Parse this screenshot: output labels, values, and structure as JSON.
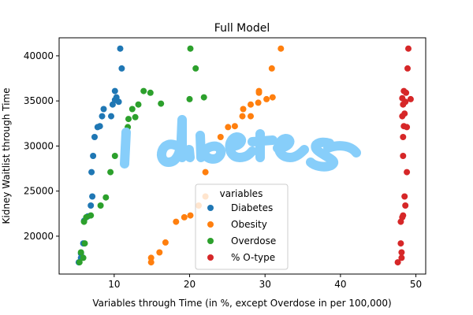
{
  "chart_data": {
    "type": "scatter",
    "title": "Full Model",
    "xlabel": "Variables through Time (in %, except Overdose in per 100,000)",
    "ylabel": "Kidney Waitlist through Time",
    "xlim": [
      2.7,
      51.3
    ],
    "ylim": [
      15800,
      42000
    ],
    "xticks": [
      10,
      20,
      30,
      40,
      50
    ],
    "yticks": [
      20000,
      25000,
      30000,
      35000,
      40000
    ],
    "grid": false,
    "legend": {
      "title": "variables",
      "placement": "lower-center",
      "entries": [
        "Diabetes",
        "Obesity",
        "Overdose",
        "% O-type"
      ]
    },
    "annotation": {
      "text": "Diabetes",
      "style": "handwritten",
      "color": "#87cefa"
    },
    "series": [
      {
        "name": "Diabetes",
        "color": "#1f77b4",
        "points": [
          [
            5.3,
            17100
          ],
          [
            5.6,
            17600
          ],
          [
            5.6,
            18100
          ],
          [
            5.9,
            19200
          ],
          [
            6.0,
            21700
          ],
          [
            6.5,
            22200
          ],
          [
            6.9,
            23400
          ],
          [
            7.1,
            24400
          ],
          [
            7.0,
            27100
          ],
          [
            7.2,
            28900
          ],
          [
            7.4,
            31000
          ],
          [
            7.8,
            32100
          ],
          [
            8.1,
            32200
          ],
          [
            8.4,
            33300
          ],
          [
            8.6,
            34100
          ],
          [
            9.6,
            33300
          ],
          [
            9.8,
            34600
          ],
          [
            10.1,
            35100
          ],
          [
            10.3,
            35400
          ],
          [
            10.1,
            36100
          ],
          [
            10.6,
            34900
          ],
          [
            11.0,
            38600
          ],
          [
            10.8,
            40800
          ]
        ]
      },
      {
        "name": "Obesity",
        "color": "#ff7f0e",
        "points": [
          [
            14.9,
            17100
          ],
          [
            14.9,
            17600
          ],
          [
            16.0,
            18200
          ],
          [
            16.8,
            19300
          ],
          [
            18.2,
            21600
          ],
          [
            19.3,
            22100
          ],
          [
            20.1,
            22300
          ],
          [
            21.2,
            23400
          ],
          [
            22.1,
            24400
          ],
          [
            22.1,
            27100
          ],
          [
            24.1,
            31000
          ],
          [
            25.1,
            32100
          ],
          [
            26.0,
            32200
          ],
          [
            27.0,
            33300
          ],
          [
            27.1,
            34100
          ],
          [
            28.1,
            33300
          ],
          [
            28.1,
            34600
          ],
          [
            29.1,
            34800
          ],
          [
            29.2,
            35900
          ],
          [
            29.2,
            36100
          ],
          [
            30.2,
            35200
          ],
          [
            31.0,
            35400
          ],
          [
            30.9,
            38600
          ],
          [
            32.1,
            40800
          ]
        ]
      },
      {
        "name": "Overdose",
        "color": "#2ca02c",
        "points": [
          [
            5.4,
            17100
          ],
          [
            5.9,
            17600
          ],
          [
            5.6,
            18200
          ],
          [
            6.1,
            19200
          ],
          [
            6.0,
            21600
          ],
          [
            6.3,
            22100
          ],
          [
            6.9,
            22300
          ],
          [
            8.2,
            23400
          ],
          [
            8.9,
            24300
          ],
          [
            9.5,
            27100
          ],
          [
            10.1,
            28900
          ],
          [
            11.8,
            32100
          ],
          [
            11.9,
            33000
          ],
          [
            12.8,
            33200
          ],
          [
            13.2,
            34600
          ],
          [
            12.4,
            34100
          ],
          [
            13.9,
            36100
          ],
          [
            14.8,
            35900
          ],
          [
            16.2,
            34700
          ],
          [
            20.0,
            35200
          ],
          [
            20.8,
            38600
          ],
          [
            20.1,
            40800
          ],
          [
            21.9,
            35400
          ]
        ]
      },
      {
        "name": "% O-type",
        "color": "#d62728",
        "points": [
          [
            47.6,
            17100
          ],
          [
            48.1,
            17600
          ],
          [
            48.1,
            18200
          ],
          [
            48.0,
            19200
          ],
          [
            48.0,
            21600
          ],
          [
            48.2,
            22100
          ],
          [
            48.3,
            22300
          ],
          [
            48.6,
            23400
          ],
          [
            48.5,
            24400
          ],
          [
            48.8,
            27100
          ],
          [
            48.3,
            28900
          ],
          [
            48.3,
            31000
          ],
          [
            48.4,
            32200
          ],
          [
            48.8,
            32100
          ],
          [
            48.2,
            33300
          ],
          [
            48.5,
            33600
          ],
          [
            48.3,
            34600
          ],
          [
            48.6,
            34900
          ],
          [
            48.2,
            35300
          ],
          [
            49.3,
            35200
          ],
          [
            48.4,
            36100
          ],
          [
            48.7,
            35900
          ],
          [
            48.9,
            38600
          ],
          [
            49.0,
            40800
          ]
        ]
      }
    ]
  }
}
